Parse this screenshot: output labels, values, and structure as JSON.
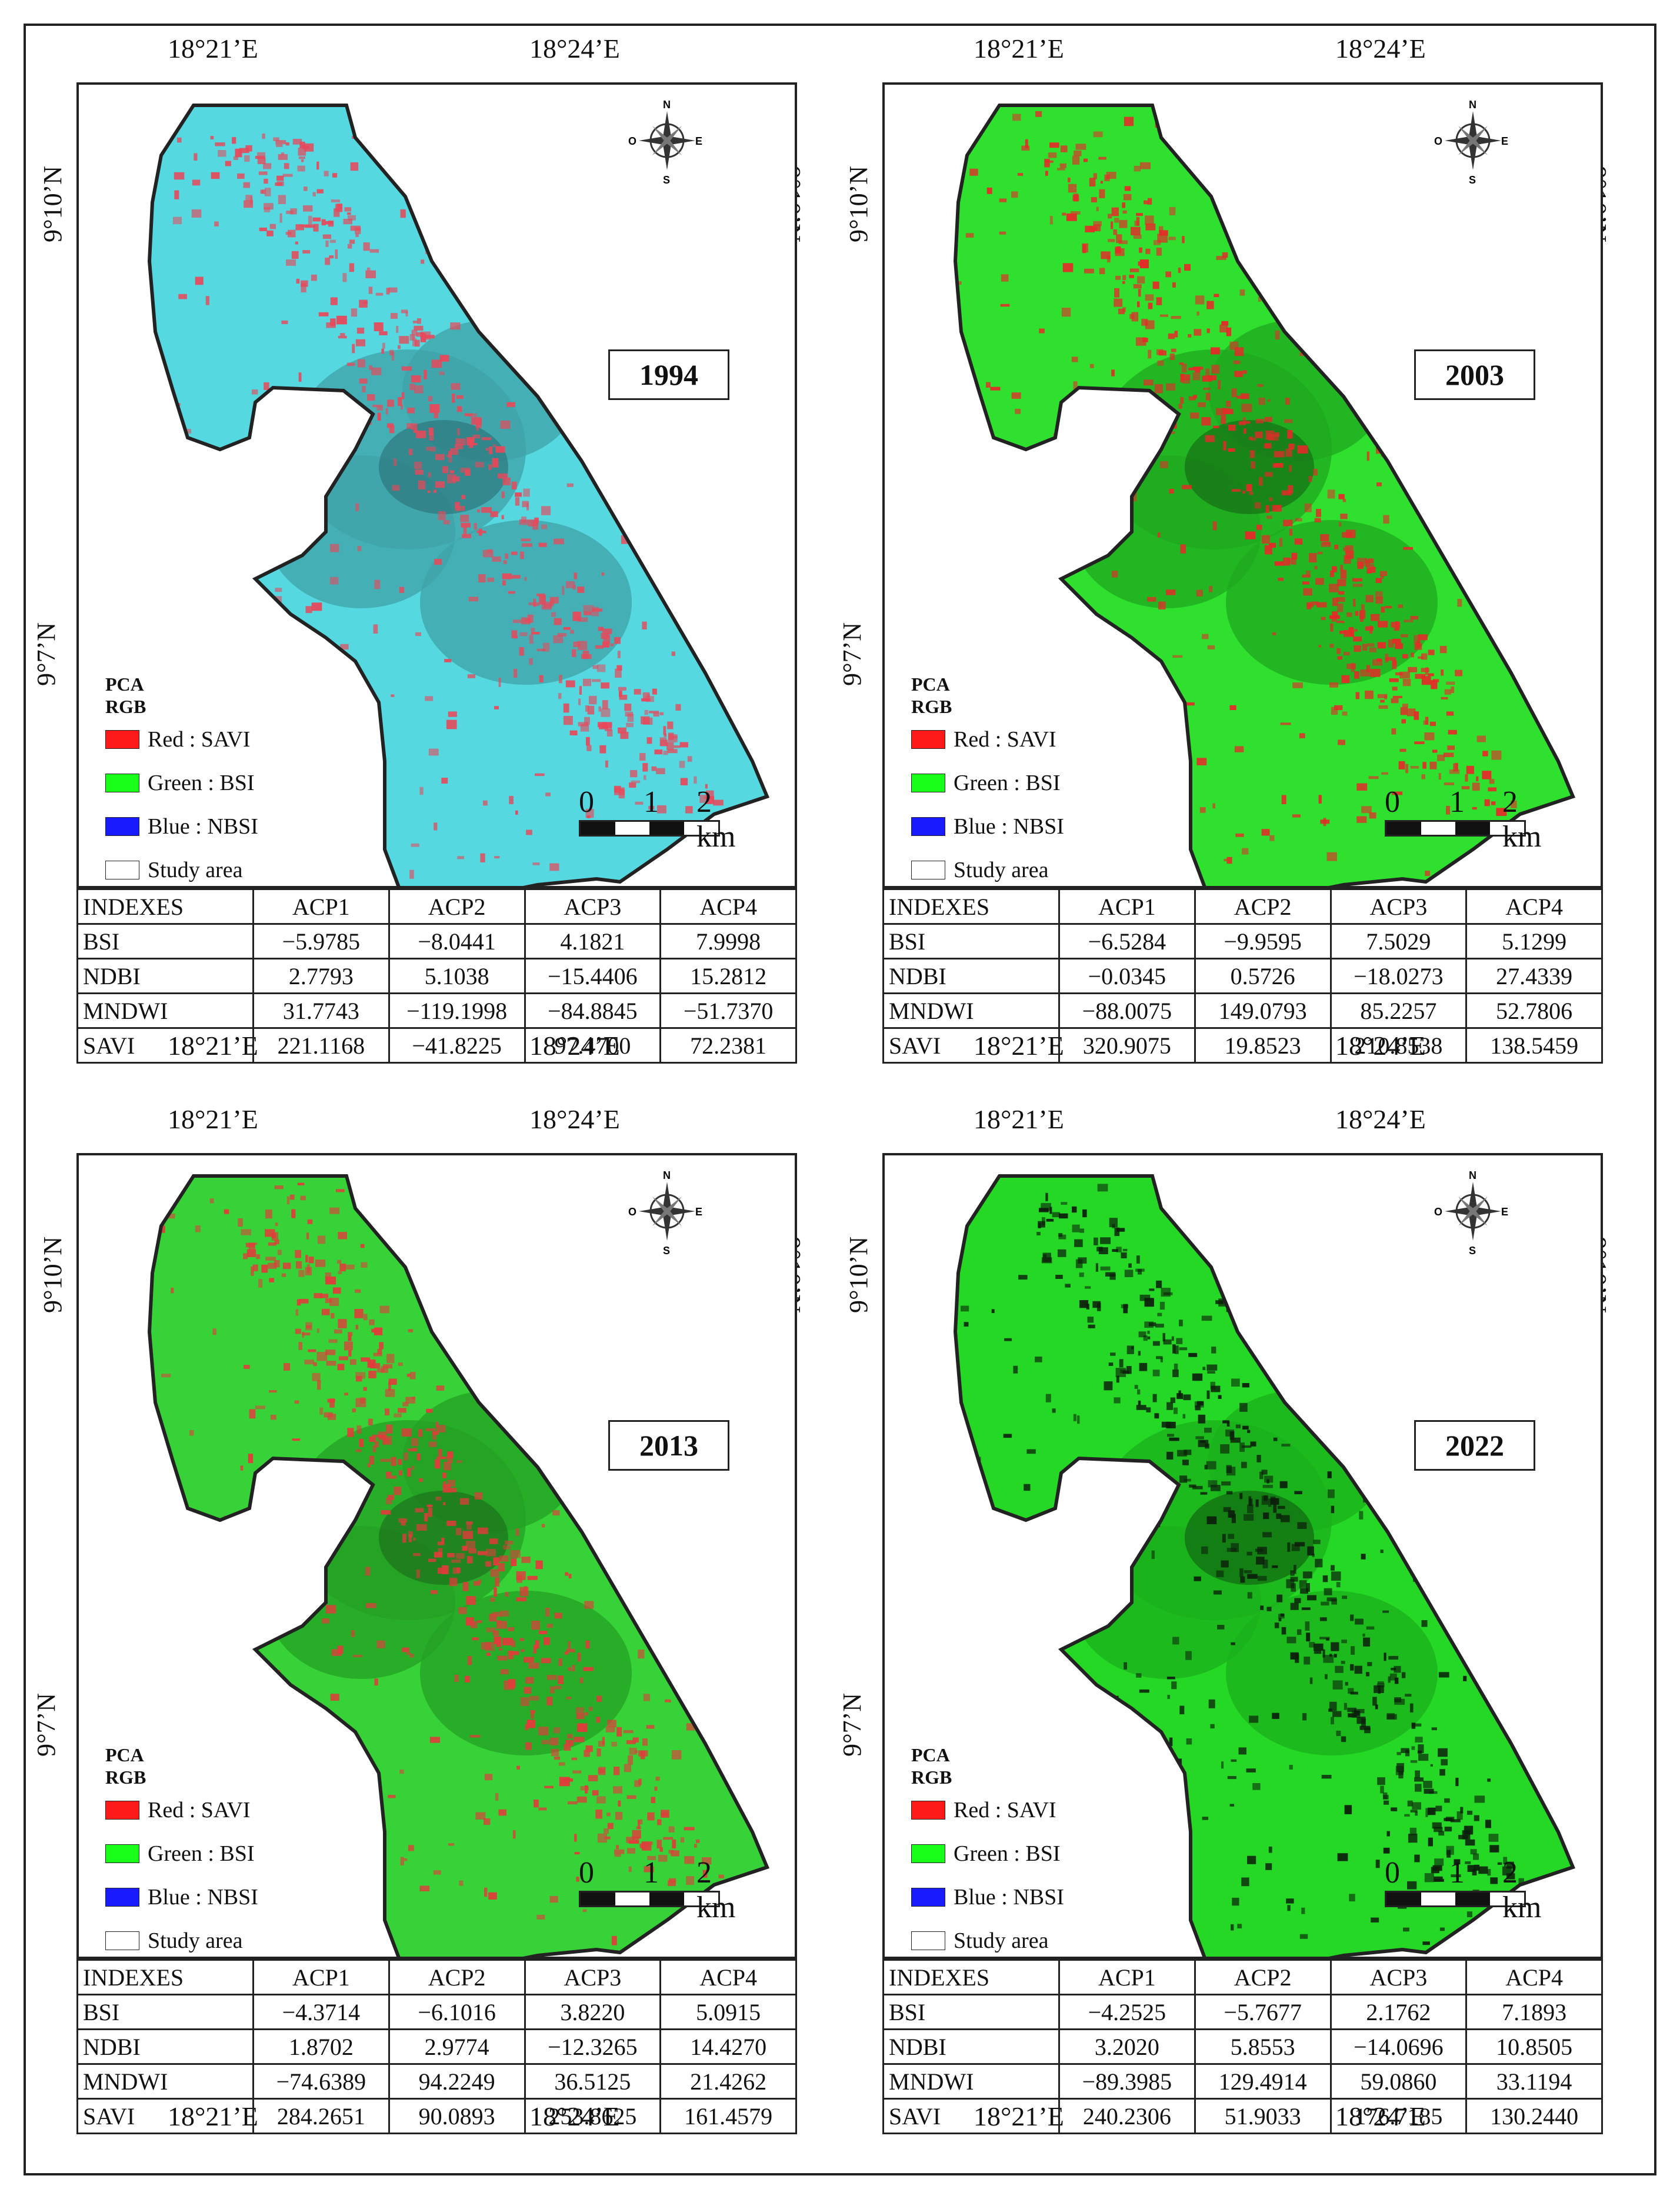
{
  "panels": [
    {
      "year": "1994",
      "colors": {
        "base": "#55d8e0",
        "urban": "#e8485a",
        "veg": "#3fa3a8",
        "dark": "#2a6f73"
      },
      "lon_top": [
        "18°21’E",
        "18°24’E"
      ],
      "lon_bottom": [
        "18°21’E",
        "18°24’E"
      ],
      "lat": [
        "9°10’N",
        "9°7’N"
      ],
      "legend": {
        "title1": "PCA",
        "title2": "RGB",
        "red": "Red : SAVI",
        "green": "Green :  BSI",
        "blue": "Blue : NBSI",
        "study": "Study area"
      },
      "scale": {
        "n0": "0",
        "n1": "1",
        "n2": "2 km"
      },
      "compass": {
        "n": "N",
        "s": "S",
        "e": "E",
        "w": "O"
      },
      "table": {
        "header": [
          "INDEXES",
          "ACP1",
          "ACP2",
          "ACP3",
          "ACP4"
        ],
        "rows": [
          [
            "BSI",
            "−5.9785",
            "−8.0441",
            "4.1821",
            "7.9998"
          ],
          [
            "NDBI",
            "2.7793",
            "5.1038",
            "−15.4406",
            "15.2812"
          ],
          [
            "MNDWI",
            "31.7743",
            "−119.1998",
            "−84.8845",
            "−51.7370"
          ],
          [
            "SAVI",
            "221.1168",
            "−41.8225",
            "97.4700",
            "72.2381"
          ]
        ]
      }
    },
    {
      "year": "2003",
      "colors": {
        "base": "#2fe02f",
        "urban": "#e82828",
        "veg": "#1fa81f",
        "dark": "#146414"
      },
      "lon_top": [
        "18°21’E",
        "18°24’E"
      ],
      "lon_bottom": [
        "18°21’E",
        "18°24’E"
      ],
      "lat": [
        "9°10’N",
        "9°7’N"
      ],
      "legend": {
        "title1": "PCA",
        "title2": "RGB",
        "red": "Red : SAVI",
        "green": "Green :  BSI",
        "blue": "Blue : NBSI",
        "study": "Study area"
      },
      "scale": {
        "n0": "0",
        "n1": "1",
        "n2": "2 km"
      },
      "compass": {
        "n": "N",
        "s": "S",
        "e": "E",
        "w": "O"
      },
      "table": {
        "header": [
          "INDEXES",
          "ACP1",
          "ACP2",
          "ACP3",
          "ACP4"
        ],
        "rows": [
          [
            "BSI",
            "−6.5284",
            "−9.9595",
            "7.5029",
            "5.1299"
          ],
          [
            "NDBI",
            "−0.0345",
            "0.5726",
            "−18.0273",
            "27.4339"
          ],
          [
            "MNDWI",
            "−88.0075",
            "149.0793",
            "85.2257",
            "52.7806"
          ],
          [
            "SAVI",
            "320.9075",
            "19.8523",
            "210.8538",
            "138.5459"
          ]
        ]
      }
    },
    {
      "year": "2013",
      "colors": {
        "base": "#37d237",
        "urban": "#e33a3a",
        "veg": "#24a024",
        "dark": "#1a6a1a"
      },
      "lon_top": [
        "18°21’E",
        "18°24’E"
      ],
      "lon_bottom": [
        "18°21’E",
        "18°24’E"
      ],
      "lat": [
        "9°10’N",
        "9°7’N"
      ],
      "legend": {
        "title1": "PCA",
        "title2": "RGB",
        "red": "Red : SAVI",
        "green": "Green :  BSI",
        "blue": "Blue : NBSI",
        "study": "Study area"
      },
      "scale": {
        "n0": "0",
        "n1": "1",
        "n2": "2 km"
      },
      "compass": {
        "n": "N",
        "s": "S",
        "e": "E",
        "w": "O"
      },
      "table": {
        "header": [
          "INDEXES",
          "ACP1",
          "ACP2",
          "ACP3",
          "ACP4"
        ],
        "rows": [
          [
            "BSI",
            "−4.3714",
            "−6.1016",
            "3.8220",
            "5.0915"
          ],
          [
            "NDBI",
            "1.8702",
            "2.9774",
            "−12.3265",
            "14.4270"
          ],
          [
            "MNDWI",
            "−74.6389",
            "94.2249",
            "36.5125",
            "21.4262"
          ],
          [
            "SAVI",
            "284.2651",
            "90.0893",
            "253.8625",
            "161.4579"
          ]
        ]
      }
    },
    {
      "year": "2022",
      "colors": {
        "base": "#25d825",
        "urban": "#0b1e0b",
        "veg": "#1bb01b",
        "dark": "#0f5a0f"
      },
      "lon_top": [
        "18°21’E",
        "18°24’E"
      ],
      "lon_bottom": [
        "18°21’E",
        "18°24’E"
      ],
      "lat": [
        "9°10’N",
        "9°7’N"
      ],
      "legend": {
        "title1": "PCA",
        "title2": "RGB",
        "red": "Red : SAVI",
        "green": "Green :  BSI",
        "blue": "Blue : NBSI",
        "study": "Study area"
      },
      "scale": {
        "n0": "0",
        "n1": "1",
        "n2": "2 km"
      },
      "compass": {
        "n": "N",
        "s": "S",
        "e": "E",
        "w": "O"
      },
      "table": {
        "header": [
          "INDEXES",
          "ACP1",
          "ACP2",
          "ACP3",
          "ACP4"
        ],
        "rows": [
          [
            "BSI",
            "−4.2525",
            "−5.7677",
            "2.1762",
            "7.1893"
          ],
          [
            "NDBI",
            "3.2020",
            "5.8553",
            "−14.0696",
            "10.8505"
          ],
          [
            "MNDWI",
            "−89.3985",
            "129.4914",
            "59.0860",
            "33.1194"
          ],
          [
            "SAVI",
            "240.2306",
            "51.9033",
            "176.7185",
            "130.2440"
          ]
        ]
      }
    }
  ],
  "legend_colors": {
    "red": "#ff1a1a",
    "green": "#1aff1a",
    "blue": "#1a1aff",
    "study": "#ffffff"
  }
}
